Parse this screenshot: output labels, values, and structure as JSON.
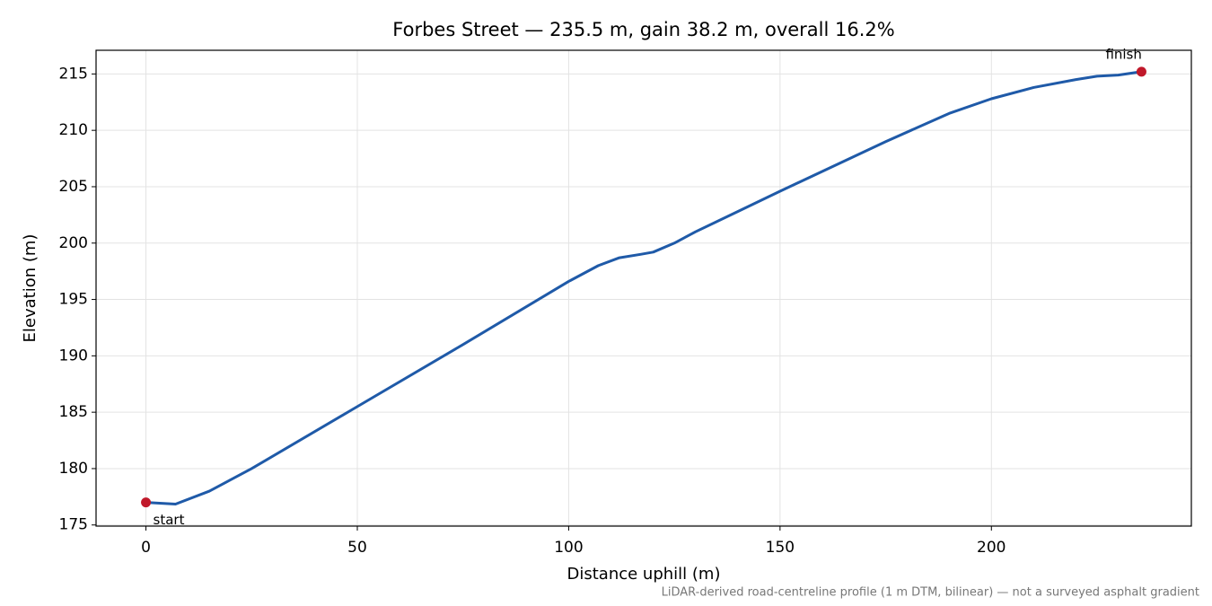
{
  "chart_data": {
    "type": "line",
    "title": "Forbes Street — 235.5 m, gain 38.2 m, overall 16.2%",
    "x_label": "Distance uphill (m)",
    "y_label": "Elevation (m)",
    "note": "LiDAR-derived road-centreline profile (1 m DTM, bilinear) — not a surveyed asphalt gradient",
    "x": [
      0,
      7,
      15,
      25,
      50,
      75,
      100,
      107,
      112,
      117,
      120,
      125,
      130,
      140,
      150,
      175,
      190,
      200,
      210,
      220,
      225,
      230,
      235.5
    ],
    "values": [
      177.0,
      176.85,
      178.0,
      180.0,
      185.5,
      191.0,
      196.6,
      198.0,
      198.7,
      199.0,
      199.2,
      200.0,
      201.0,
      202.8,
      204.6,
      209.0,
      211.5,
      212.8,
      213.8,
      214.5,
      214.8,
      214.9,
      215.2
    ],
    "color": "#1f5aa8",
    "points": [
      {
        "label": "start",
        "x": 0,
        "y": 177.0
      },
      {
        "label": "finish",
        "x": 235.5,
        "y": 215.2
      }
    ],
    "point_color": "#c0182a",
    "xlim": [
      -11.8,
      247.3
    ],
    "ylim": [
      174.9,
      217.1
    ],
    "xticks": [
      0,
      50,
      100,
      150,
      200
    ],
    "yticks": [
      175,
      180,
      185,
      190,
      195,
      200,
      205,
      210,
      215
    ],
    "grid": true
  }
}
